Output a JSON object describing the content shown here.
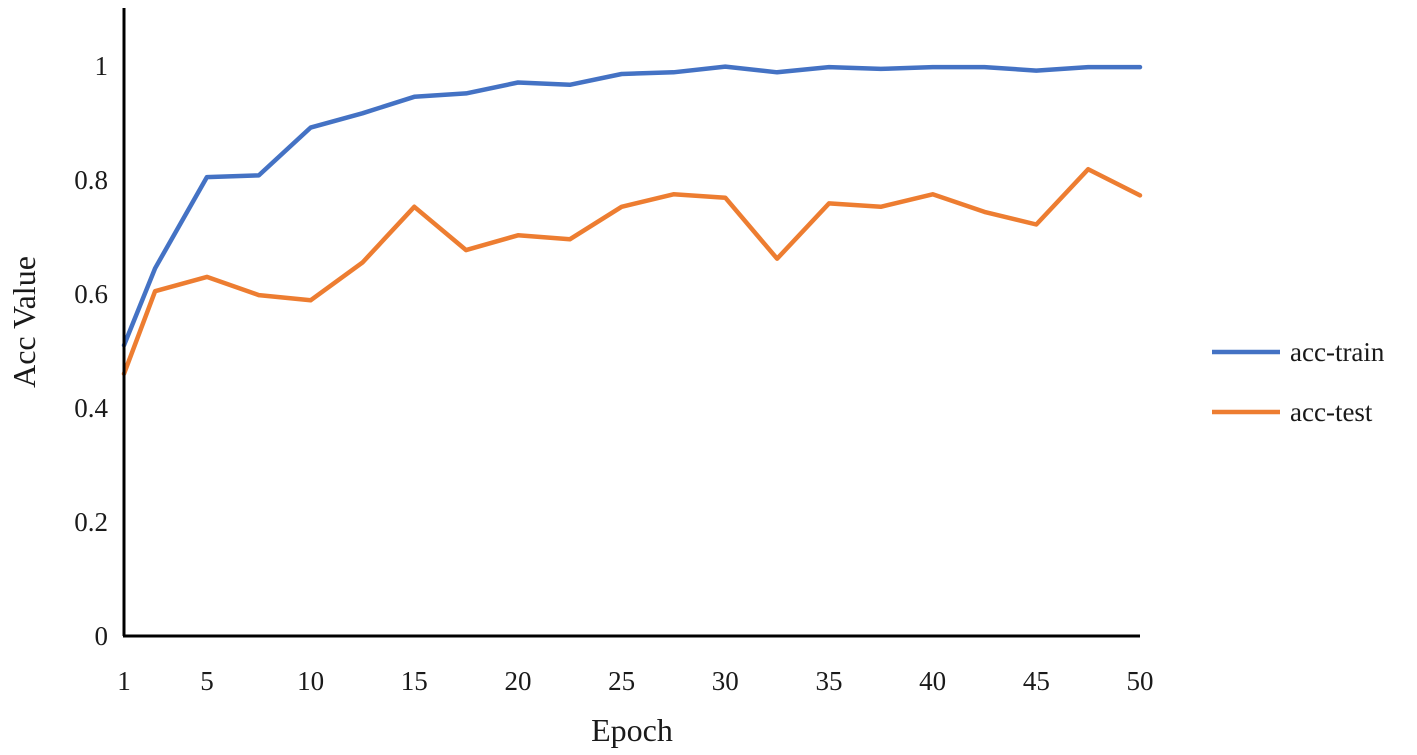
{
  "chart_data": {
    "type": "line",
    "xlabel": "Epoch",
    "ylabel": "Acc Value",
    "x_ticks": [
      "1",
      "5",
      "10",
      "15",
      "20",
      "25",
      "30",
      "35",
      "40",
      "45",
      "50"
    ],
    "y_ticks": [
      "0",
      "0.2",
      "0.4",
      "0.6",
      "0.8",
      "1"
    ],
    "xlim": [
      1,
      50
    ],
    "ylim": [
      0,
      1.1
    ],
    "grid": false,
    "legend_position": "right",
    "x": [
      1,
      2.5,
      5,
      7.5,
      10,
      12.5,
      15,
      17.5,
      20,
      22.5,
      25,
      27.5,
      30,
      32.5,
      35,
      37.5,
      40,
      42.5,
      45,
      47.5,
      50
    ],
    "series": [
      {
        "name": "acc-train",
        "color": "#4472C4",
        "values": [
          0.51,
          0.645,
          0.805,
          0.808,
          0.892,
          0.917,
          0.946,
          0.952,
          0.971,
          0.967,
          0.986,
          0.989,
          0.999,
          0.989,
          0.998,
          0.995,
          0.998,
          0.998,
          0.992,
          0.998,
          0.998
        ]
      },
      {
        "name": "acc-test",
        "color": "#ED7D31",
        "values": [
          0.46,
          0.605,
          0.63,
          0.598,
          0.589,
          0.655,
          0.753,
          0.677,
          0.703,
          0.696,
          0.753,
          0.775,
          0.769,
          0.662,
          0.759,
          0.753,
          0.775,
          0.744,
          0.722,
          0.819,
          0.773
        ]
      }
    ]
  }
}
